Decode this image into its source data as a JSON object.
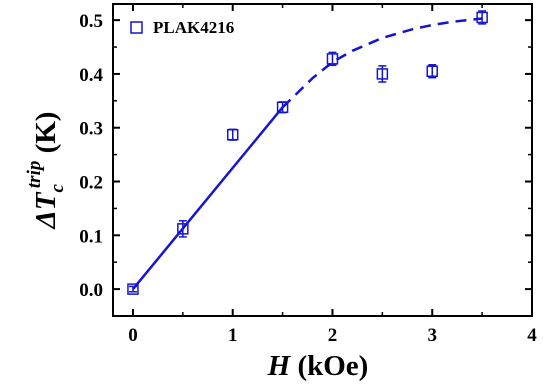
{
  "chart_data": {
    "type": "scatter",
    "xlim": [
      -0.2,
      4.0
    ],
    "ylim": [
      -0.05,
      0.53
    ],
    "xticks": [
      0,
      1,
      2,
      3,
      4
    ],
    "xtick_labels": [
      "0",
      "1",
      "2",
      "3",
      "4"
    ],
    "yticks": [
      0.0,
      0.1,
      0.2,
      0.3,
      0.4,
      0.5
    ],
    "ytick_labels": [
      "0.0",
      "0.1",
      "0.2",
      "0.3",
      "0.4",
      "0.5"
    ],
    "xlabel": {
      "var": "H",
      "unit": " (kOe)"
    },
    "ylabel": {
      "var": "ΔT",
      "sub": "c",
      "sup": "trip",
      "unit": " (K)"
    },
    "grid": false,
    "legend_position": "top-left",
    "series": [
      {
        "name": "PLAK4216",
        "marker": "open-square",
        "color": "#1515d0",
        "x": [
          0,
          0.5,
          1.0,
          1.5,
          2.0,
          2.5,
          3.0,
          3.5
        ],
        "y": [
          0.0,
          0.112,
          0.287,
          0.338,
          0.428,
          0.4,
          0.405,
          0.505
        ],
        "yerr": [
          0.005,
          0.015,
          0.01,
          0.01,
          0.012,
          0.015,
          0.012,
          0.012
        ]
      }
    ],
    "fit_lines": [
      {
        "style": "solid",
        "color": "#1515d0",
        "x": [
          0,
          1.5
        ],
        "y": [
          0,
          0.338
        ]
      },
      {
        "style": "dashed",
        "color": "#1515d0",
        "x": [
          1.5,
          1.8,
          2.0,
          2.2,
          2.5,
          2.8,
          3.0,
          3.2,
          3.5
        ],
        "y": [
          0.338,
          0.392,
          0.422,
          0.443,
          0.467,
          0.483,
          0.491,
          0.497,
          0.503
        ]
      }
    ]
  }
}
